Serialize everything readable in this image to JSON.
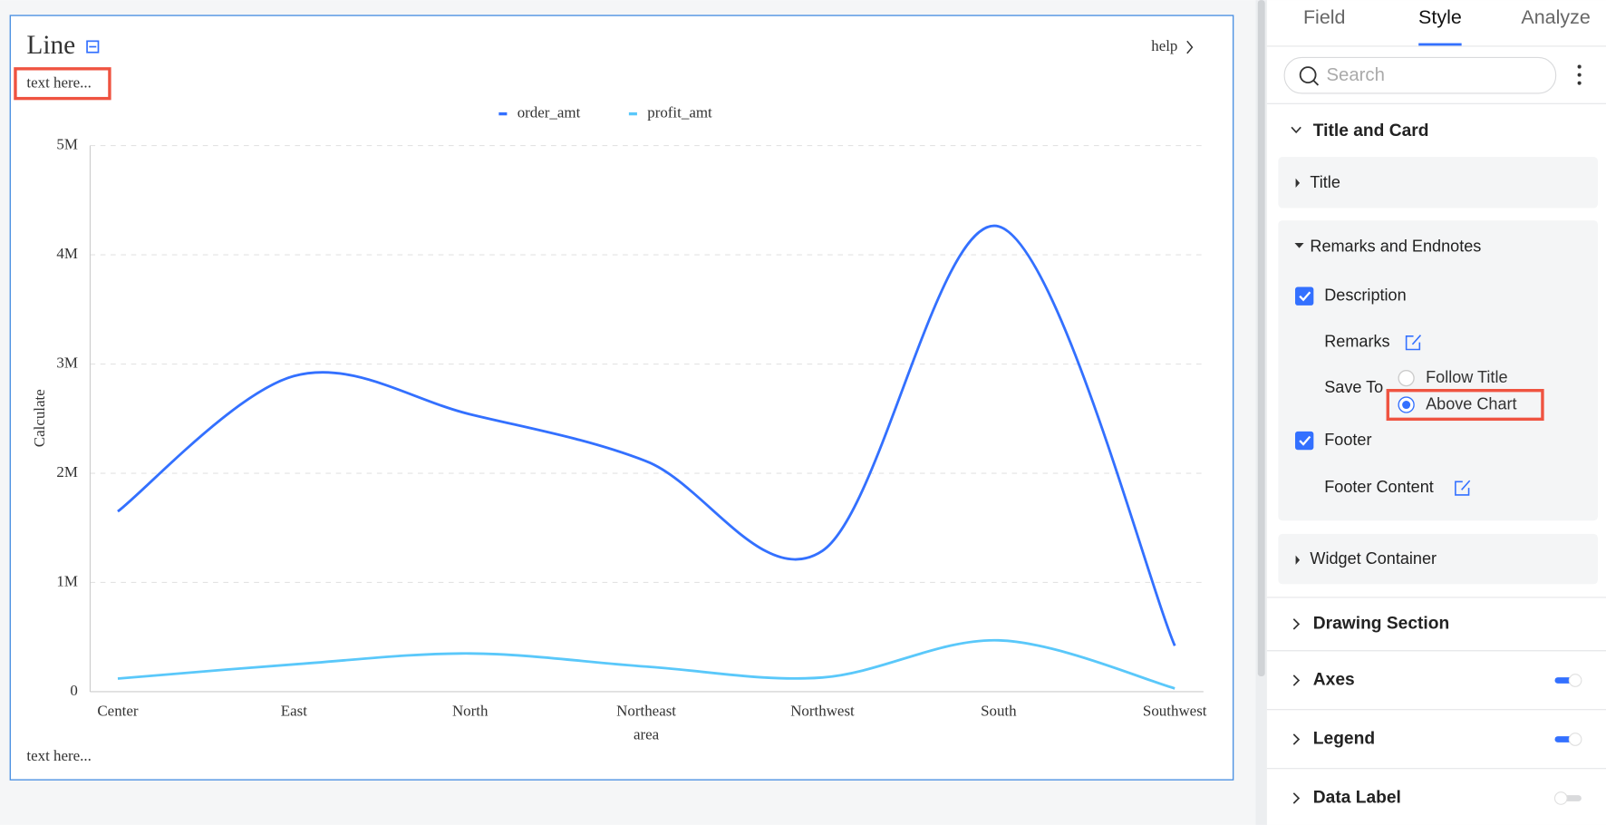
{
  "card": {
    "title": "Line",
    "help": "help",
    "description": "text here...",
    "footer": "text here..."
  },
  "chart_data": {
    "type": "line",
    "categories": [
      "Center",
      "East",
      "North",
      "Northeast",
      "Northwest",
      "South",
      "Southwest"
    ],
    "series": [
      {
        "name": "order_amt",
        "color": "#3370ff",
        "values": [
          1650000,
          2890000,
          2540000,
          2110000,
          1290000,
          4260000,
          420000
        ]
      },
      {
        "name": "profit_amt",
        "color": "#5ac8fa",
        "values": [
          120000,
          250000,
          350000,
          230000,
          130000,
          470000,
          30000
        ]
      }
    ],
    "ylim": [
      0,
      5000000
    ],
    "yticks": [
      0,
      {
        "value": 1000000,
        "label": "1M"
      },
      {
        "value": 2000000,
        "label": "2M"
      },
      {
        "value": 3000000,
        "label": "3M"
      },
      {
        "value": 4000000,
        "label": "4M"
      },
      {
        "value": 5000000,
        "label": "5M"
      }
    ],
    "y_label": "Calculate",
    "x_label": "area",
    "grid": true,
    "legend": "top",
    "smooth": true
  },
  "panel": {
    "tabs": [
      "Field",
      "Style",
      "Analyze"
    ],
    "active_tab": 1,
    "search": "Search",
    "title_and_card": "Title and Card",
    "title": "Title",
    "remarks_and_endnotes": "Remarks and Endnotes",
    "description": {
      "label": "Description",
      "checked": true
    },
    "remarks": "Remarks",
    "save_to": {
      "label": "Save To",
      "options": [
        "Follow Title",
        "Above Chart"
      ],
      "selected": 1
    },
    "footer": {
      "label": "Footer",
      "checked": true
    },
    "footer_content": "Footer Content",
    "widget_container": "Widget Container",
    "drawing_section": "Drawing Section",
    "toggles": [
      {
        "label": "Axes",
        "on": true
      },
      {
        "label": "Legend",
        "on": true
      },
      {
        "label": "Data Label",
        "on": false
      }
    ]
  }
}
